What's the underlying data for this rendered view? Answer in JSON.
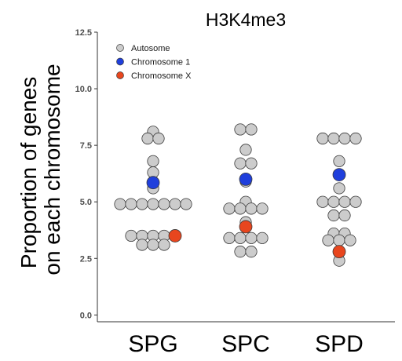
{
  "chart_data": {
    "type": "scatter",
    "subtype": "beeswarm",
    "title": "H3K4me3",
    "ylabel": [
      "Proportion of genes",
      "on each chromosome"
    ],
    "xlabel": "",
    "categories": [
      "SPG",
      "SPC",
      "SPD"
    ],
    "ylim": [
      -0.3,
      12.5
    ],
    "yticks": [
      "0.0",
      "2.5",
      "5.0",
      "7.5",
      "10.0",
      "12.5"
    ],
    "grid": false,
    "legend_position": "top-left",
    "series": [
      {
        "name": "Autosome",
        "color": "#cccccc",
        "points": [
          {
            "category": "SPG",
            "values": [
              8.1,
              7.8,
              7.8,
              6.8,
              6.3,
              5.6,
              4.9,
              4.9,
              4.9,
              4.9,
              4.9,
              4.9,
              4.9,
              3.5,
              3.5,
              3.5,
              3.5,
              3.1,
              3.1,
              3.1
            ]
          },
          {
            "category": "SPC",
            "values": [
              8.2,
              8.2,
              7.3,
              6.7,
              6.7,
              5.9,
              5.0,
              4.7,
              4.7,
              4.7,
              4.7,
              4.1,
              3.4,
              3.4,
              3.4,
              3.4,
              2.8,
              2.8
            ]
          },
          {
            "category": "SPD",
            "values": [
              7.8,
              7.8,
              7.8,
              7.8,
              6.8,
              5.6,
              5.0,
              5.0,
              5.0,
              5.0,
              4.4,
              4.4,
              3.6,
              3.6,
              3.3,
              3.3,
              3.3,
              2.4
            ]
          }
        ]
      },
      {
        "name": "Chromosome 1",
        "color": "#1f3fdc",
        "points": [
          {
            "category": "SPG",
            "values": [
              5.85
            ]
          },
          {
            "category": "SPC",
            "values": [
              6.0
            ]
          },
          {
            "category": "SPD",
            "values": [
              6.2
            ]
          }
        ]
      },
      {
        "name": "Chromosome X",
        "color": "#e8461e",
        "points": [
          {
            "category": "SPG",
            "values": [
              3.5
            ]
          },
          {
            "category": "SPC",
            "values": [
              3.9
            ]
          },
          {
            "category": "SPD",
            "values": [
              2.8
            ]
          }
        ]
      }
    ]
  }
}
